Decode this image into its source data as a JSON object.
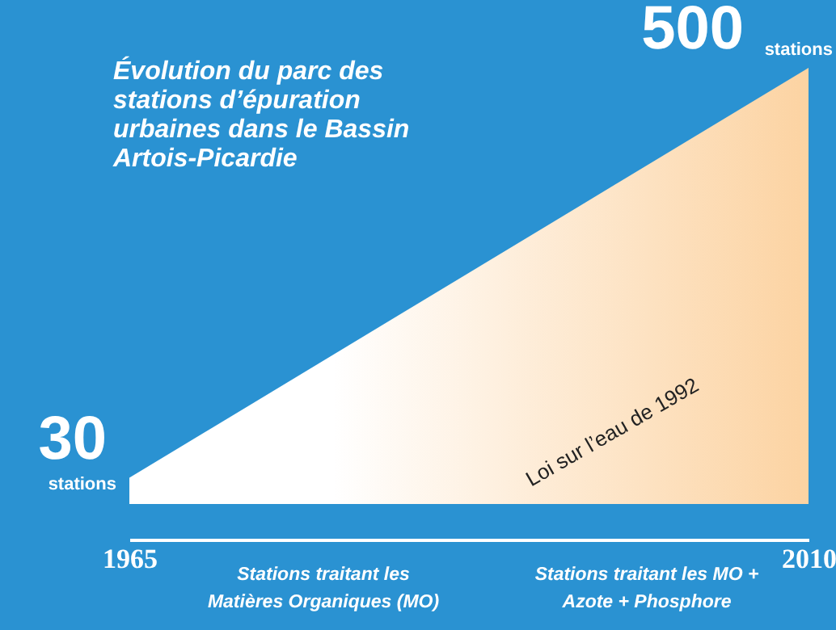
{
  "chart_data": {
    "type": "area",
    "title": "Évolution du parc des stations d’épuration urbaines dans le Bassin Artois-Picardie",
    "x": [
      1965,
      2010
    ],
    "xlim": [
      1965,
      2010
    ],
    "xticks": [
      1965,
      2010
    ],
    "series": [
      {
        "color": "#fcd3a2",
        "values": [
          30,
          500
        ],
        "value_labels": [
          "30 stations",
          "500 stations"
        ]
      }
    ],
    "annotations": [
      "Loi sur l’eau de 1992",
      "Stations traitant les Matières Organiques (MO)",
      "Stations traitant les MO + Azote + Phosphore"
    ],
    "tick_labels": "x",
    "grid": false
  }
}
